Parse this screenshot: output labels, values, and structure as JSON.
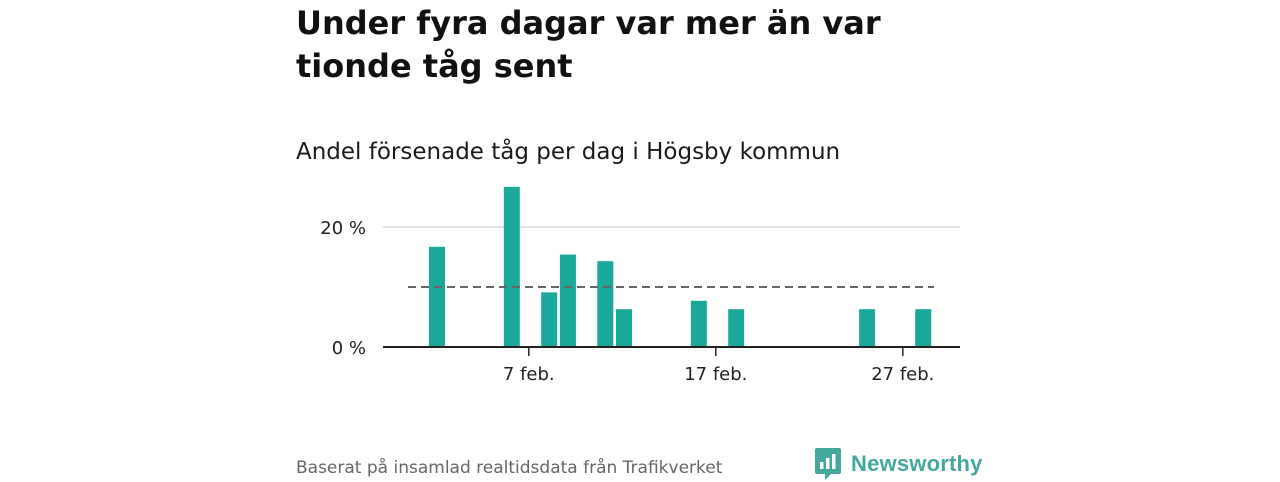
{
  "headline": "Under fyra dagar var mer än var tionde tåg sent",
  "chart_data": {
    "type": "bar",
    "title": "Andel försenade tåg per dag i Högsby kommun",
    "xlabel": "",
    "ylabel": "",
    "x_unit": "day of February",
    "x_range": [
      1,
      29
    ],
    "ylim": [
      0,
      28
    ],
    "y_ticks": [
      {
        "value": 0,
        "label": "0 %"
      },
      {
        "value": 20,
        "label": "20 %"
      }
    ],
    "x_ticks": [
      {
        "day": 7,
        "label": "7 feb."
      },
      {
        "day": 17,
        "label": "17 feb."
      },
      {
        "day": 27,
        "label": "27 feb."
      }
    ],
    "bars": [
      {
        "day": 3,
        "value": 16.7
      },
      {
        "day": 7,
        "value": 26.7
      },
      {
        "day": 9,
        "value": 9.1
      },
      {
        "day": 10,
        "value": 15.4
      },
      {
        "day": 12,
        "value": 14.3
      },
      {
        "day": 13,
        "value": 6.3
      },
      {
        "day": 17,
        "value": 7.7
      },
      {
        "day": 19,
        "value": 6.3
      },
      {
        "day": 26,
        "value": 6.3
      },
      {
        "day": 29,
        "value": 6.3
      }
    ],
    "reference_line": {
      "value": 10,
      "style": "dashed",
      "from_day": 2,
      "to_day": 30
    },
    "bar_color": "#19a89a",
    "grid": true
  },
  "footer": {
    "source": "Baserat på insamlad realtidsdata från Trafikverket",
    "logo_text": "Newsworthy",
    "logo_icon": "newsworthy-logo-icon",
    "logo_color": "#44a89d"
  }
}
